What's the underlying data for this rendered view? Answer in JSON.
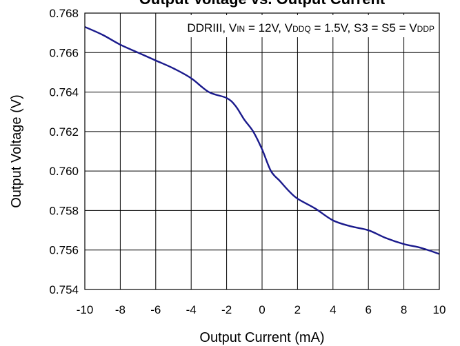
{
  "chart_data": {
    "type": "line",
    "title": "Output Voltage vs. Output Current",
    "xlabel": "Output Current (mA)",
    "ylabel": "Output Voltage (V)",
    "xlim": [
      -10,
      10
    ],
    "ylim": [
      0.754,
      0.768
    ],
    "xticks": [
      -10,
      -8,
      -6,
      -4,
      -2,
      0,
      2,
      4,
      6,
      8,
      10
    ],
    "yticks": [
      0.754,
      0.756,
      0.758,
      0.76,
      0.762,
      0.764,
      0.766,
      0.768
    ],
    "grid": true,
    "annotation": {
      "parts": [
        {
          "text": "DDRIII, V",
          "sub": false
        },
        {
          "text": "IN",
          "sub": true
        },
        {
          "text": " = 12V, V",
          "sub": false
        },
        {
          "text": "DDQ",
          "sub": true
        },
        {
          "text": " = 1.5V, S3 = S5 = V",
          "sub": false
        },
        {
          "text": "DDP",
          "sub": true
        }
      ]
    },
    "series": [
      {
        "color": "#1a1a8c",
        "x": [
          -10,
          -9,
          -8,
          -7,
          -6,
          -5,
          -4,
          -3,
          -2,
          -1.5,
          -1,
          -0.5,
          0,
          0.5,
          1,
          1.5,
          2,
          3,
          4,
          5,
          6,
          7,
          8,
          9,
          10
        ],
        "y": [
          0.7673,
          0.7669,
          0.7664,
          0.766,
          0.7656,
          0.7652,
          0.7647,
          0.764,
          0.7637,
          0.7633,
          0.7626,
          0.762,
          0.7611,
          0.76,
          0.7595,
          0.759,
          0.7586,
          0.7581,
          0.7575,
          0.7572,
          0.757,
          0.7566,
          0.7563,
          0.7561,
          0.7558
        ]
      }
    ]
  }
}
